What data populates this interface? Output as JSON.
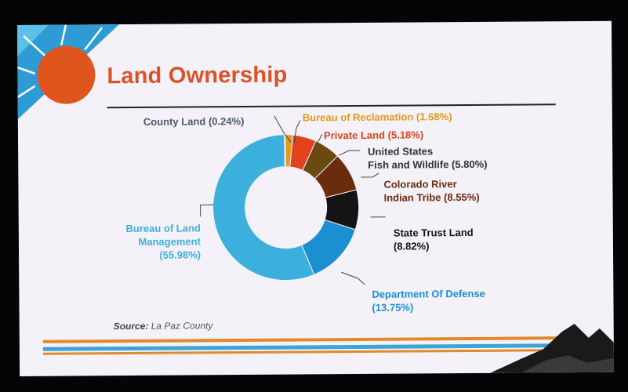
{
  "slide": {
    "title": "Land Ownership",
    "source_label": "Source:",
    "source_value": "La Paz County"
  },
  "chart_data": {
    "type": "pie",
    "donut": true,
    "title": "Land Ownership",
    "slices": [
      {
        "label_lines": [
          "Bureau of Reclamation (1.68%)"
        ],
        "value": 1.68,
        "color": "#e39a20"
      },
      {
        "label_lines": [
          "Private Land (5.18%)"
        ],
        "value": 5.18,
        "color": "#e2421c"
      },
      {
        "label_lines": [
          "United States",
          "Fish and Wildlife (5.80%)"
        ],
        "value": 5.8,
        "color": "#6b4a12"
      },
      {
        "label_lines": [
          "Colorado River",
          "Indian Tribe (8.55%)"
        ],
        "value": 8.55,
        "color": "#6a2c0c"
      },
      {
        "label_lines": [
          "State Trust Land",
          "(8.82%)"
        ],
        "value": 8.82,
        "color": "#141414"
      },
      {
        "label_lines": [
          "Department Of Defense",
          "(13.75%)"
        ],
        "value": 13.75,
        "color": "#1c8fd0"
      },
      {
        "label_lines": [
          "Bureau of Land",
          "Management",
          "(55.98%)"
        ],
        "value": 55.98,
        "color": "#3cb0dc"
      },
      {
        "label_lines": [
          "County Land  (0.24%)"
        ],
        "value": 0.24,
        "color": "#9a8a40"
      }
    ]
  },
  "colors": {
    "title": "#d9532a",
    "sun": "#e0541e",
    "sky": "#2e9bd4",
    "stripe_orange": "#e08a2a",
    "stripe_blue": "#3aa6d6"
  }
}
